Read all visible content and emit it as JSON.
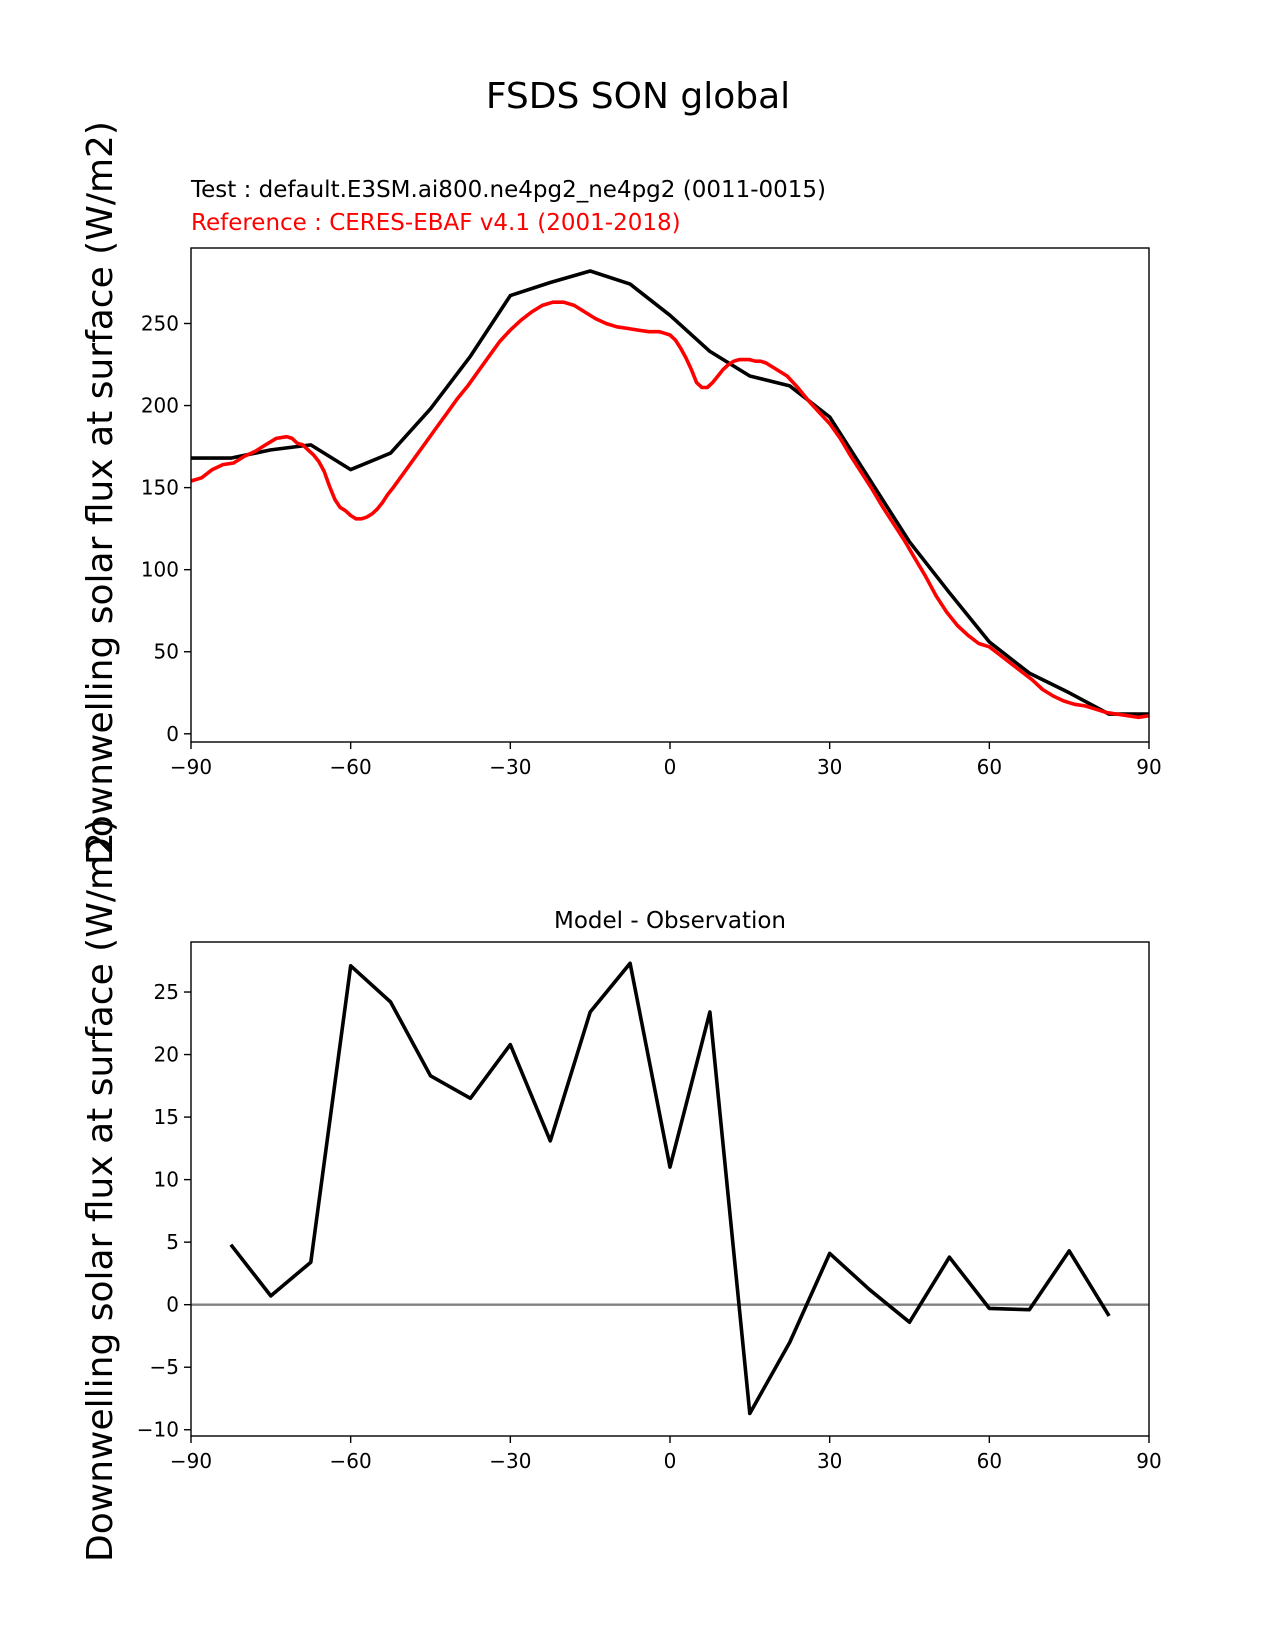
{
  "figure": {
    "suptitle": "FSDS SON global"
  },
  "chart_data": [
    {
      "type": "line",
      "id": "top",
      "title_test": "Test : default.E3SM.ai800.ne4pg2_ne4pg2 (0011-0015)",
      "title_ref": "Reference : CERES-EBAF v4.1 (2001-2018)",
      "ylabel": "Downwelling solar flux at surface (W/m2)",
      "xlabel": "",
      "xlim": [
        -90,
        90
      ],
      "ylim": [
        -5,
        296
      ],
      "xticks": [
        -90,
        -60,
        -30,
        0,
        30,
        60,
        90
      ],
      "xtick_labels": [
        "−90",
        "−60",
        "−30",
        "0",
        "30",
        "60",
        "90"
      ],
      "yticks": [
        0,
        50,
        100,
        150,
        200,
        250
      ],
      "ytick_labels": [
        "0",
        "50",
        "100",
        "150",
        "200",
        "250"
      ],
      "series": [
        {
          "color": "#000000",
          "x": [
            -90,
            -82.5,
            -75,
            -67.5,
            -60,
            -52.5,
            -45,
            -37.5,
            -30,
            -22.5,
            -15,
            -7.5,
            0,
            7.5,
            15,
            22.5,
            30,
            37.5,
            45,
            52.5,
            60,
            67.5,
            75,
            82.5,
            90
          ],
          "y": [
            168,
            168,
            173,
            176,
            161,
            171,
            198,
            230,
            267,
            275,
            282,
            274,
            255,
            233,
            218,
            212,
            193,
            155,
            117,
            86,
            56,
            37,
            25,
            12,
            12
          ]
        },
        {
          "color": "#ff0000",
          "x": [
            -90,
            -88,
            -86,
            -84,
            -82,
            -80,
            -78,
            -76,
            -74,
            -72,
            -71,
            -70,
            -69,
            -68,
            -67,
            -66,
            -65,
            -64,
            -63,
            -62,
            -61,
            -60,
            -59,
            -58,
            -57,
            -56,
            -55,
            -54,
            -53,
            -52,
            -50,
            -48,
            -46,
            -44,
            -42,
            -40,
            -38,
            -36,
            -34,
            -32,
            -30,
            -28,
            -26,
            -24,
            -22,
            -20,
            -18,
            -16,
            -14,
            -12,
            -10,
            -8,
            -6,
            -4,
            -2,
            -1,
            0,
            1,
            2,
            3,
            4,
            5,
            6,
            7,
            8,
            9,
            10,
            11,
            12,
            13,
            14,
            15,
            16,
            17,
            18,
            20,
            22,
            24,
            26,
            28,
            30,
            32,
            34,
            36,
            38,
            40,
            42,
            44,
            46,
            48,
            50,
            52,
            54,
            56,
            58,
            60,
            62,
            64,
            66,
            68,
            70,
            72,
            74,
            76,
            78,
            80,
            82,
            84,
            86,
            88,
            90
          ],
          "y": [
            154,
            156,
            161,
            164,
            165,
            169,
            172,
            176,
            180,
            181,
            180,
            177,
            176,
            173,
            170,
            166,
            160,
            151,
            143,
            138,
            136,
            133,
            131,
            131,
            132,
            134,
            137,
            141,
            146,
            150,
            159,
            168,
            177,
            186,
            195,
            204,
            212,
            221,
            230,
            239,
            246,
            252,
            257,
            261,
            263,
            263,
            261,
            257,
            253,
            250,
            248,
            247,
            246,
            245,
            245,
            244,
            243,
            240,
            235,
            229,
            222,
            214,
            211,
            211,
            214,
            218,
            222,
            225,
            227,
            228,
            228,
            228,
            227,
            227,
            226,
            222,
            218,
            211,
            203,
            196,
            189,
            180,
            169,
            159,
            149,
            138,
            128,
            118,
            107,
            96,
            84,
            74,
            66,
            60,
            55,
            53,
            48,
            43,
            38,
            33,
            27,
            23,
            20,
            18,
            17,
            15,
            13,
            12,
            11,
            10,
            11
          ]
        }
      ]
    },
    {
      "type": "line",
      "id": "bottom",
      "title": "Model - Observation",
      "ylabel": "Downwelling solar flux at surface (W/m2)",
      "xlabel": "",
      "xlim": [
        -90,
        90
      ],
      "ylim": [
        -10.5,
        29
      ],
      "xticks": [
        -90,
        -60,
        -30,
        0,
        30,
        60,
        90
      ],
      "xtick_labels": [
        "−90",
        "−60",
        "−30",
        "0",
        "30",
        "60",
        "90"
      ],
      "yticks": [
        -10,
        -5,
        0,
        5,
        10,
        15,
        20,
        25
      ],
      "ytick_labels": [
        "−10",
        "−5",
        "0",
        "5",
        "10",
        "15",
        "20",
        "25"
      ],
      "zero_line": {
        "y": 0,
        "color": "#808080"
      },
      "series": [
        {
          "color": "#000000",
          "x": [
            -82.5,
            -75,
            -67.5,
            -60,
            -52.5,
            -45,
            -37.5,
            -30,
            -22.5,
            -15,
            -7.5,
            0,
            7.5,
            15,
            22.5,
            30,
            37.5,
            45,
            52.5,
            60,
            67.5,
            75,
            82.5
          ],
          "y": [
            4.8,
            0.7,
            3.4,
            27.1,
            24.2,
            18.3,
            16.5,
            20.8,
            13.1,
            23.4,
            27.3,
            11,
            23.4,
            -8.7,
            -3,
            4.1,
            1.2,
            -1.4,
            3.8,
            -0.3,
            -0.4,
            4.3,
            -0.9
          ]
        }
      ]
    }
  ]
}
